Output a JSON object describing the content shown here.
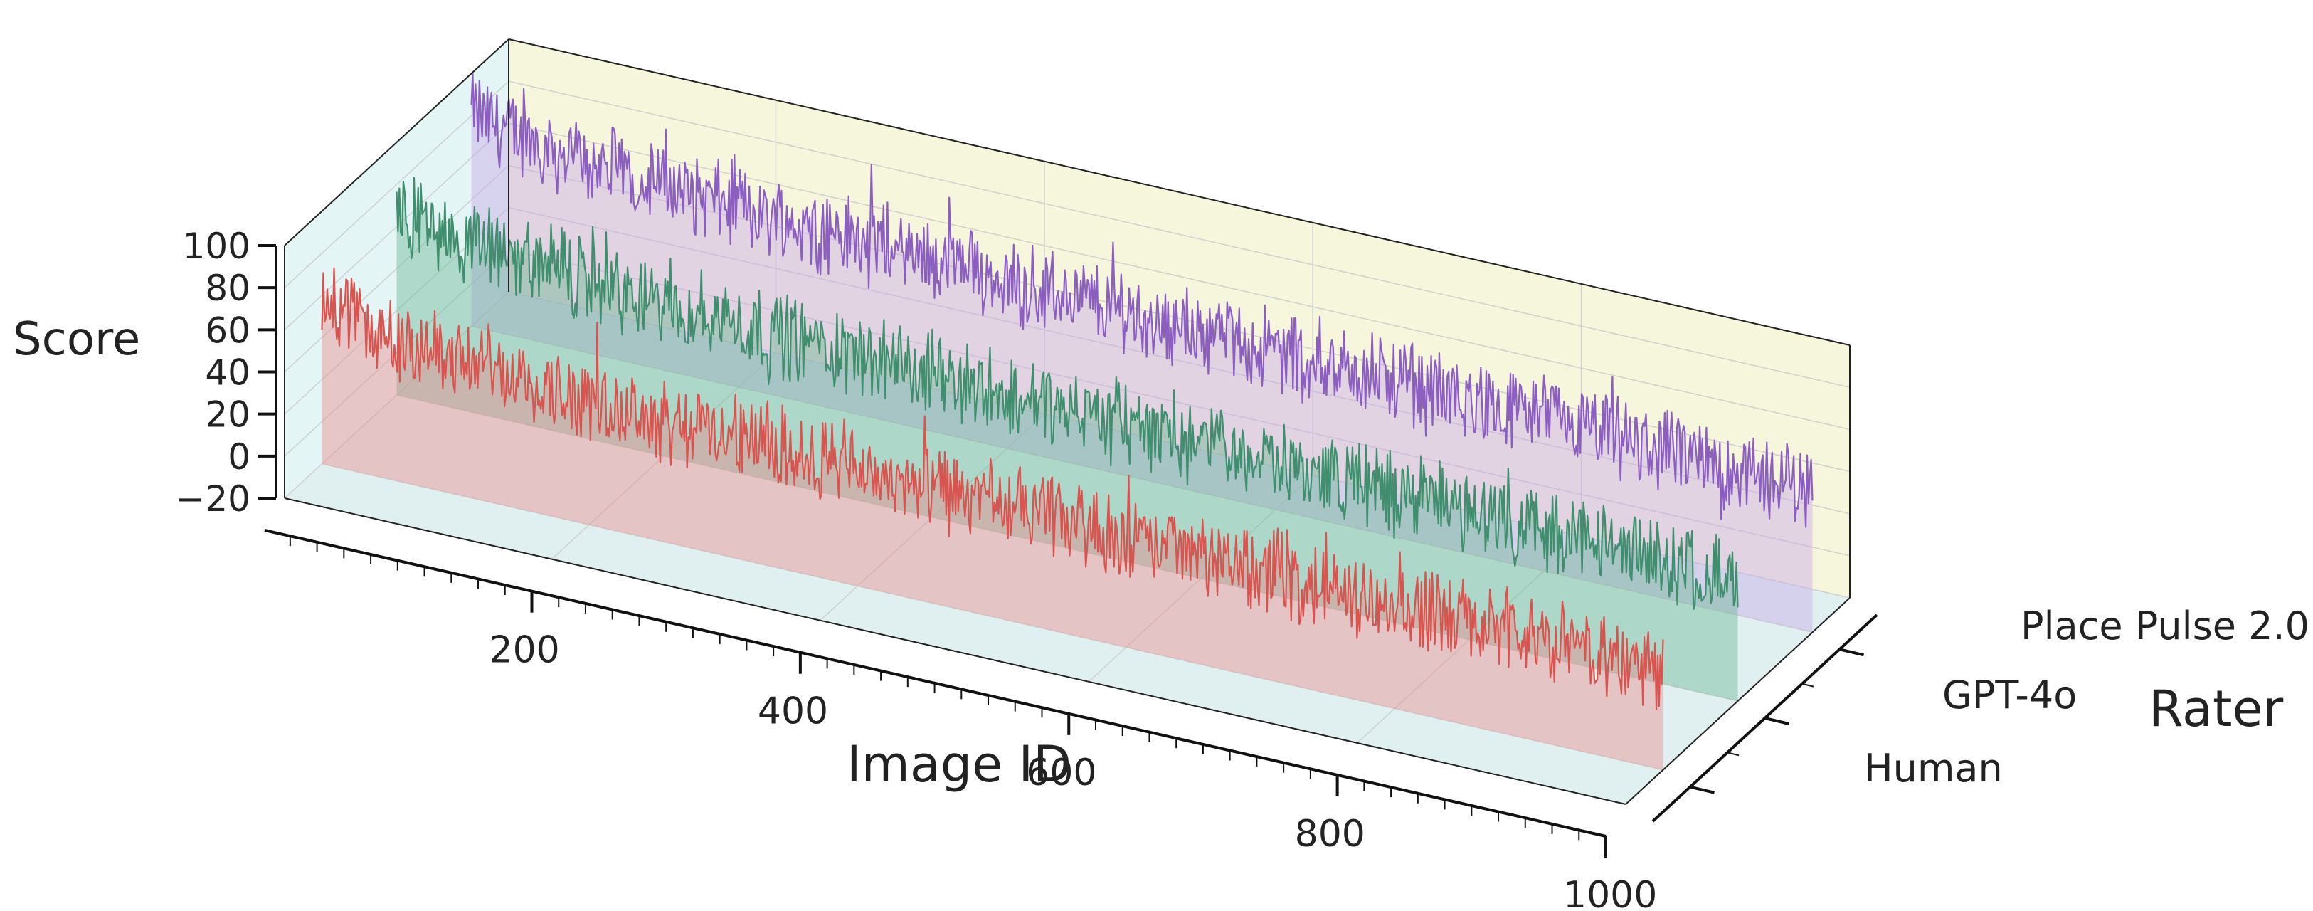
{
  "chart_data": {
    "type": "line",
    "projection": "3d",
    "title": "",
    "xlabel": "Image ID",
    "ylabel": "Rater",
    "zlabel": "Score",
    "xlim": [
      1,
      1000
    ],
    "zlim": [
      -20,
      100
    ],
    "x_ticks": [
      200,
      400,
      600,
      800,
      1000
    ],
    "z_ticks": [
      100,
      80,
      60,
      40,
      20,
      0,
      -20
    ],
    "x_tick_labels": [
      "200",
      "400",
      "600",
      "800",
      "1000"
    ],
    "z_tick_labels": [
      "100",
      "80",
      "60",
      "40",
      "20",
      "0",
      "−20"
    ],
    "categories": [
      "Human",
      "GPT-4o",
      "Place Pulse 2.0"
    ],
    "pane_colors": {
      "back_wall": "#f6f6dc",
      "side_wall": "#e3f5f5",
      "floor": "#e0f0f0"
    },
    "series": [
      {
        "category": "Human",
        "color": "#d9534f",
        "fill": "#e88e8e",
        "samples_per_anchor": 20,
        "anchors": [
          60,
          52,
          48,
          46,
          45,
          44,
          43,
          42,
          42,
          41,
          41,
          40,
          40,
          39,
          39,
          38,
          38,
          37,
          37,
          36,
          36,
          35,
          35,
          35,
          34,
          34,
          34,
          33,
          33,
          33,
          32,
          32,
          32,
          32,
          31,
          31,
          31,
          30,
          30,
          30,
          30,
          29,
          29,
          29,
          29,
          28,
          28,
          28,
          28,
          28,
          27
        ]
      },
      {
        "category": "GPT-4o",
        "color": "#3f8f6e",
        "fill": "#6fb896",
        "samples_per_anchor": 20,
        "anchors": [
          70,
          65,
          62,
          60,
          58,
          57,
          56,
          55,
          54,
          53,
          53,
          52,
          52,
          51,
          51,
          50,
          50,
          49,
          49,
          48,
          48,
          48,
          47,
          47,
          47,
          46,
          46,
          46,
          45,
          45,
          45,
          44,
          44,
          44,
          43,
          43,
          43,
          42,
          42,
          42,
          41,
          41,
          41,
          40,
          40,
          40,
          39,
          39,
          39,
          38,
          38
        ]
      },
      {
        "category": "Place Pulse 2.0",
        "color": "#8c5ec2",
        "fill": "#c8a9e6",
        "samples_per_anchor": 20,
        "anchors": [
          82,
          78,
          75,
          73,
          71,
          70,
          69,
          68,
          67,
          66,
          66,
          65,
          64,
          64,
          63,
          63,
          62,
          62,
          61,
          61,
          60,
          60,
          59,
          59,
          58,
          58,
          57,
          57,
          56,
          56,
          56,
          55,
          55,
          54,
          54,
          54,
          53,
          53,
          52,
          52,
          52,
          51,
          51,
          50,
          50,
          50,
          49,
          49,
          48,
          48,
          48
        ]
      }
    ]
  }
}
